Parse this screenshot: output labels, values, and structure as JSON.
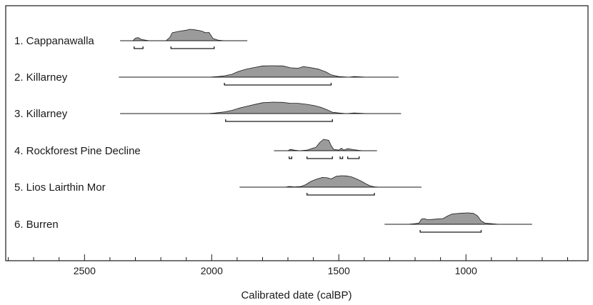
{
  "chart_data": {
    "type": "area",
    "title": "",
    "xlabel": "Calibrated date (calBP)",
    "ylabel": "",
    "x_reversed": true,
    "xlim": [
      2810,
      520
    ],
    "major_ticks": [
      2500,
      2000,
      1500,
      1000
    ],
    "minor_tick_step": 100,
    "grid": false,
    "fill_color": "#9b9b9b",
    "line_color": "#1a1a1a",
    "series": [
      {
        "name": "1. Cappanawalla",
        "range": [
          2360,
          1860
        ],
        "density": [
          [
            2360,
            0
          ],
          [
            2310,
            0
          ],
          [
            2300,
            0.22
          ],
          [
            2290,
            0.28
          ],
          [
            2275,
            0.1
          ],
          [
            2245,
            0
          ],
          [
            2180,
            0
          ],
          [
            2165,
            0.28
          ],
          [
            2155,
            0.7
          ],
          [
            2130,
            0.82
          ],
          [
            2100,
            0.92
          ],
          [
            2085,
            1
          ],
          [
            2065,
            0.95
          ],
          [
            2040,
            0.85
          ],
          [
            2025,
            0.7
          ],
          [
            2010,
            0.72
          ],
          [
            1995,
            0.2
          ],
          [
            1975,
            0.05
          ],
          [
            1950,
            0
          ],
          [
            1860,
            0
          ]
        ],
        "hpd": [
          [
            2305,
            2270
          ],
          [
            2160,
            1990
          ]
        ]
      },
      {
        "name": "2. Killarney",
        "range": [
          2365,
          1265
        ],
        "density": [
          [
            2365,
            0
          ],
          [
            2010,
            0
          ],
          [
            1975,
            0.05
          ],
          [
            1950,
            0.12
          ],
          [
            1920,
            0.25
          ],
          [
            1900,
            0.45
          ],
          [
            1880,
            0.6
          ],
          [
            1860,
            0.72
          ],
          [
            1830,
            0.85
          ],
          [
            1800,
            0.98
          ],
          [
            1760,
            1
          ],
          [
            1720,
            0.98
          ],
          [
            1690,
            0.82
          ],
          [
            1660,
            0.78
          ],
          [
            1640,
            0.92
          ],
          [
            1615,
            0.85
          ],
          [
            1580,
            0.7
          ],
          [
            1550,
            0.45
          ],
          [
            1530,
            0.2
          ],
          [
            1500,
            0.05
          ],
          [
            1460,
            0
          ],
          [
            1440,
            0.05
          ],
          [
            1420,
            0.03
          ],
          [
            1390,
            0
          ],
          [
            1265,
            0
          ]
        ],
        "hpd": [
          [
            1950,
            1530
          ]
        ]
      },
      {
        "name": "3. Killarney",
        "range": [
          2360,
          1255
        ],
        "density": [
          [
            2360,
            0
          ],
          [
            2015,
            0
          ],
          [
            1985,
            0.05
          ],
          [
            1950,
            0.15
          ],
          [
            1920,
            0.28
          ],
          [
            1890,
            0.48
          ],
          [
            1860,
            0.65
          ],
          [
            1830,
            0.8
          ],
          [
            1800,
            0.95
          ],
          [
            1760,
            1
          ],
          [
            1720,
            0.98
          ],
          [
            1690,
            0.9
          ],
          [
            1660,
            0.9
          ],
          [
            1630,
            0.82
          ],
          [
            1600,
            0.72
          ],
          [
            1570,
            0.55
          ],
          [
            1545,
            0.32
          ],
          [
            1525,
            0.12
          ],
          [
            1500,
            0.05
          ],
          [
            1470,
            0
          ],
          [
            1440,
            0.05
          ],
          [
            1410,
            0.02
          ],
          [
            1380,
            0
          ],
          [
            1255,
            0
          ]
        ],
        "hpd": [
          [
            1945,
            1525
          ]
        ]
      },
      {
        "name": "4. Rockforest Pine Decline",
        "range": [
          1755,
          1350
        ],
        "density": [
          [
            1755,
            0
          ],
          [
            1700,
            0
          ],
          [
            1690,
            0.12
          ],
          [
            1675,
            0.05
          ],
          [
            1655,
            0
          ],
          [
            1625,
            0.05
          ],
          [
            1605,
            0.2
          ],
          [
            1590,
            0.3
          ],
          [
            1575,
            0.72
          ],
          [
            1560,
            1
          ],
          [
            1540,
            0.92
          ],
          [
            1530,
            0.45
          ],
          [
            1520,
            0.12
          ],
          [
            1500,
            0.05
          ],
          [
            1490,
            0.22
          ],
          [
            1480,
            0.05
          ],
          [
            1465,
            0.18
          ],
          [
            1445,
            0.1
          ],
          [
            1420,
            0.03
          ],
          [
            1405,
            0
          ],
          [
            1350,
            0
          ]
        ],
        "hpd": [
          [
            1695,
            1685
          ],
          [
            1625,
            1525
          ],
          [
            1495,
            1485
          ],
          [
            1465,
            1420
          ]
        ]
      },
      {
        "name": "5. Lios Lairthin Mor",
        "range": [
          1890,
          1175
        ],
        "density": [
          [
            1890,
            0
          ],
          [
            1710,
            0
          ],
          [
            1695,
            0.06
          ],
          [
            1675,
            0.02
          ],
          [
            1650,
            0.05
          ],
          [
            1630,
            0.22
          ],
          [
            1610,
            0.5
          ],
          [
            1590,
            0.68
          ],
          [
            1565,
            0.85
          ],
          [
            1545,
            0.82
          ],
          [
            1530,
            0.72
          ],
          [
            1510,
            0.95
          ],
          [
            1490,
            1
          ],
          [
            1470,
            0.98
          ],
          [
            1450,
            0.9
          ],
          [
            1430,
            0.72
          ],
          [
            1410,
            0.5
          ],
          [
            1390,
            0.25
          ],
          [
            1375,
            0.1
          ],
          [
            1360,
            0.03
          ],
          [
            1340,
            0
          ],
          [
            1175,
            0
          ]
        ],
        "hpd": [
          [
            1625,
            1360
          ]
        ]
      },
      {
        "name": "6. Burren",
        "range": [
          1320,
          740
        ],
        "density": [
          [
            1320,
            0
          ],
          [
            1230,
            0
          ],
          [
            1200,
            0.05
          ],
          [
            1185,
            0.1
          ],
          [
            1175,
            0.45
          ],
          [
            1165,
            0.5
          ],
          [
            1150,
            0.4
          ],
          [
            1120,
            0.45
          ],
          [
            1090,
            0.5
          ],
          [
            1070,
            0.75
          ],
          [
            1055,
            0.9
          ],
          [
            1030,
            0.95
          ],
          [
            1010,
            0.98
          ],
          [
            990,
            1
          ],
          [
            970,
            0.95
          ],
          [
            955,
            0.75
          ],
          [
            940,
            0.3
          ],
          [
            925,
            0.1
          ],
          [
            900,
            0.05
          ],
          [
            870,
            0
          ],
          [
            740,
            0
          ]
        ],
        "hpd": [
          [
            1180,
            940
          ]
        ]
      }
    ]
  }
}
